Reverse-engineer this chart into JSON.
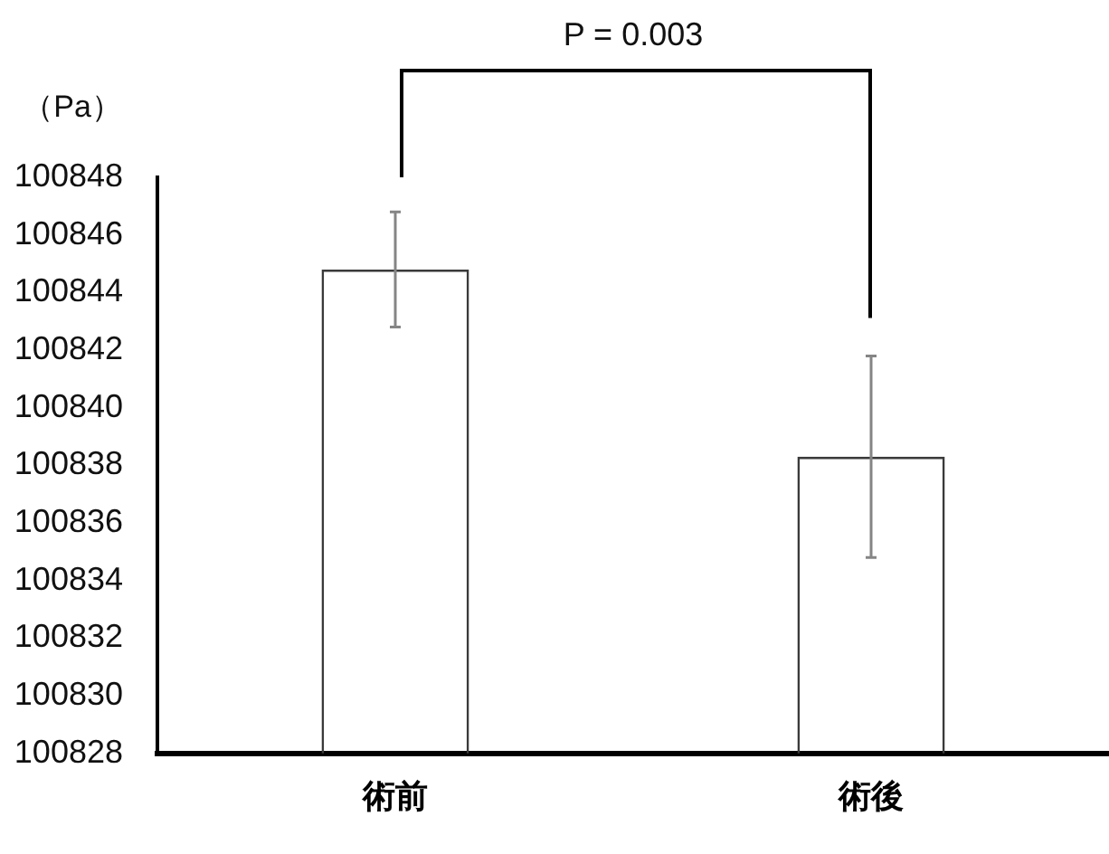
{
  "chart_data": {
    "type": "bar",
    "ylabel": "（Pa）",
    "categories": [
      "術前",
      "術後"
    ],
    "values": [
      100844.8,
      100838.3
    ],
    "errors": [
      2,
      3.5
    ],
    "color": "#3a3a3a",
    "ylim": [
      100828,
      100848
    ],
    "yticks": [
      100828,
      100830,
      100832,
      100834,
      100836,
      100838,
      100840,
      100842,
      100844,
      100846,
      100848
    ],
    "annotations": [
      "P = 0.003"
    ]
  }
}
